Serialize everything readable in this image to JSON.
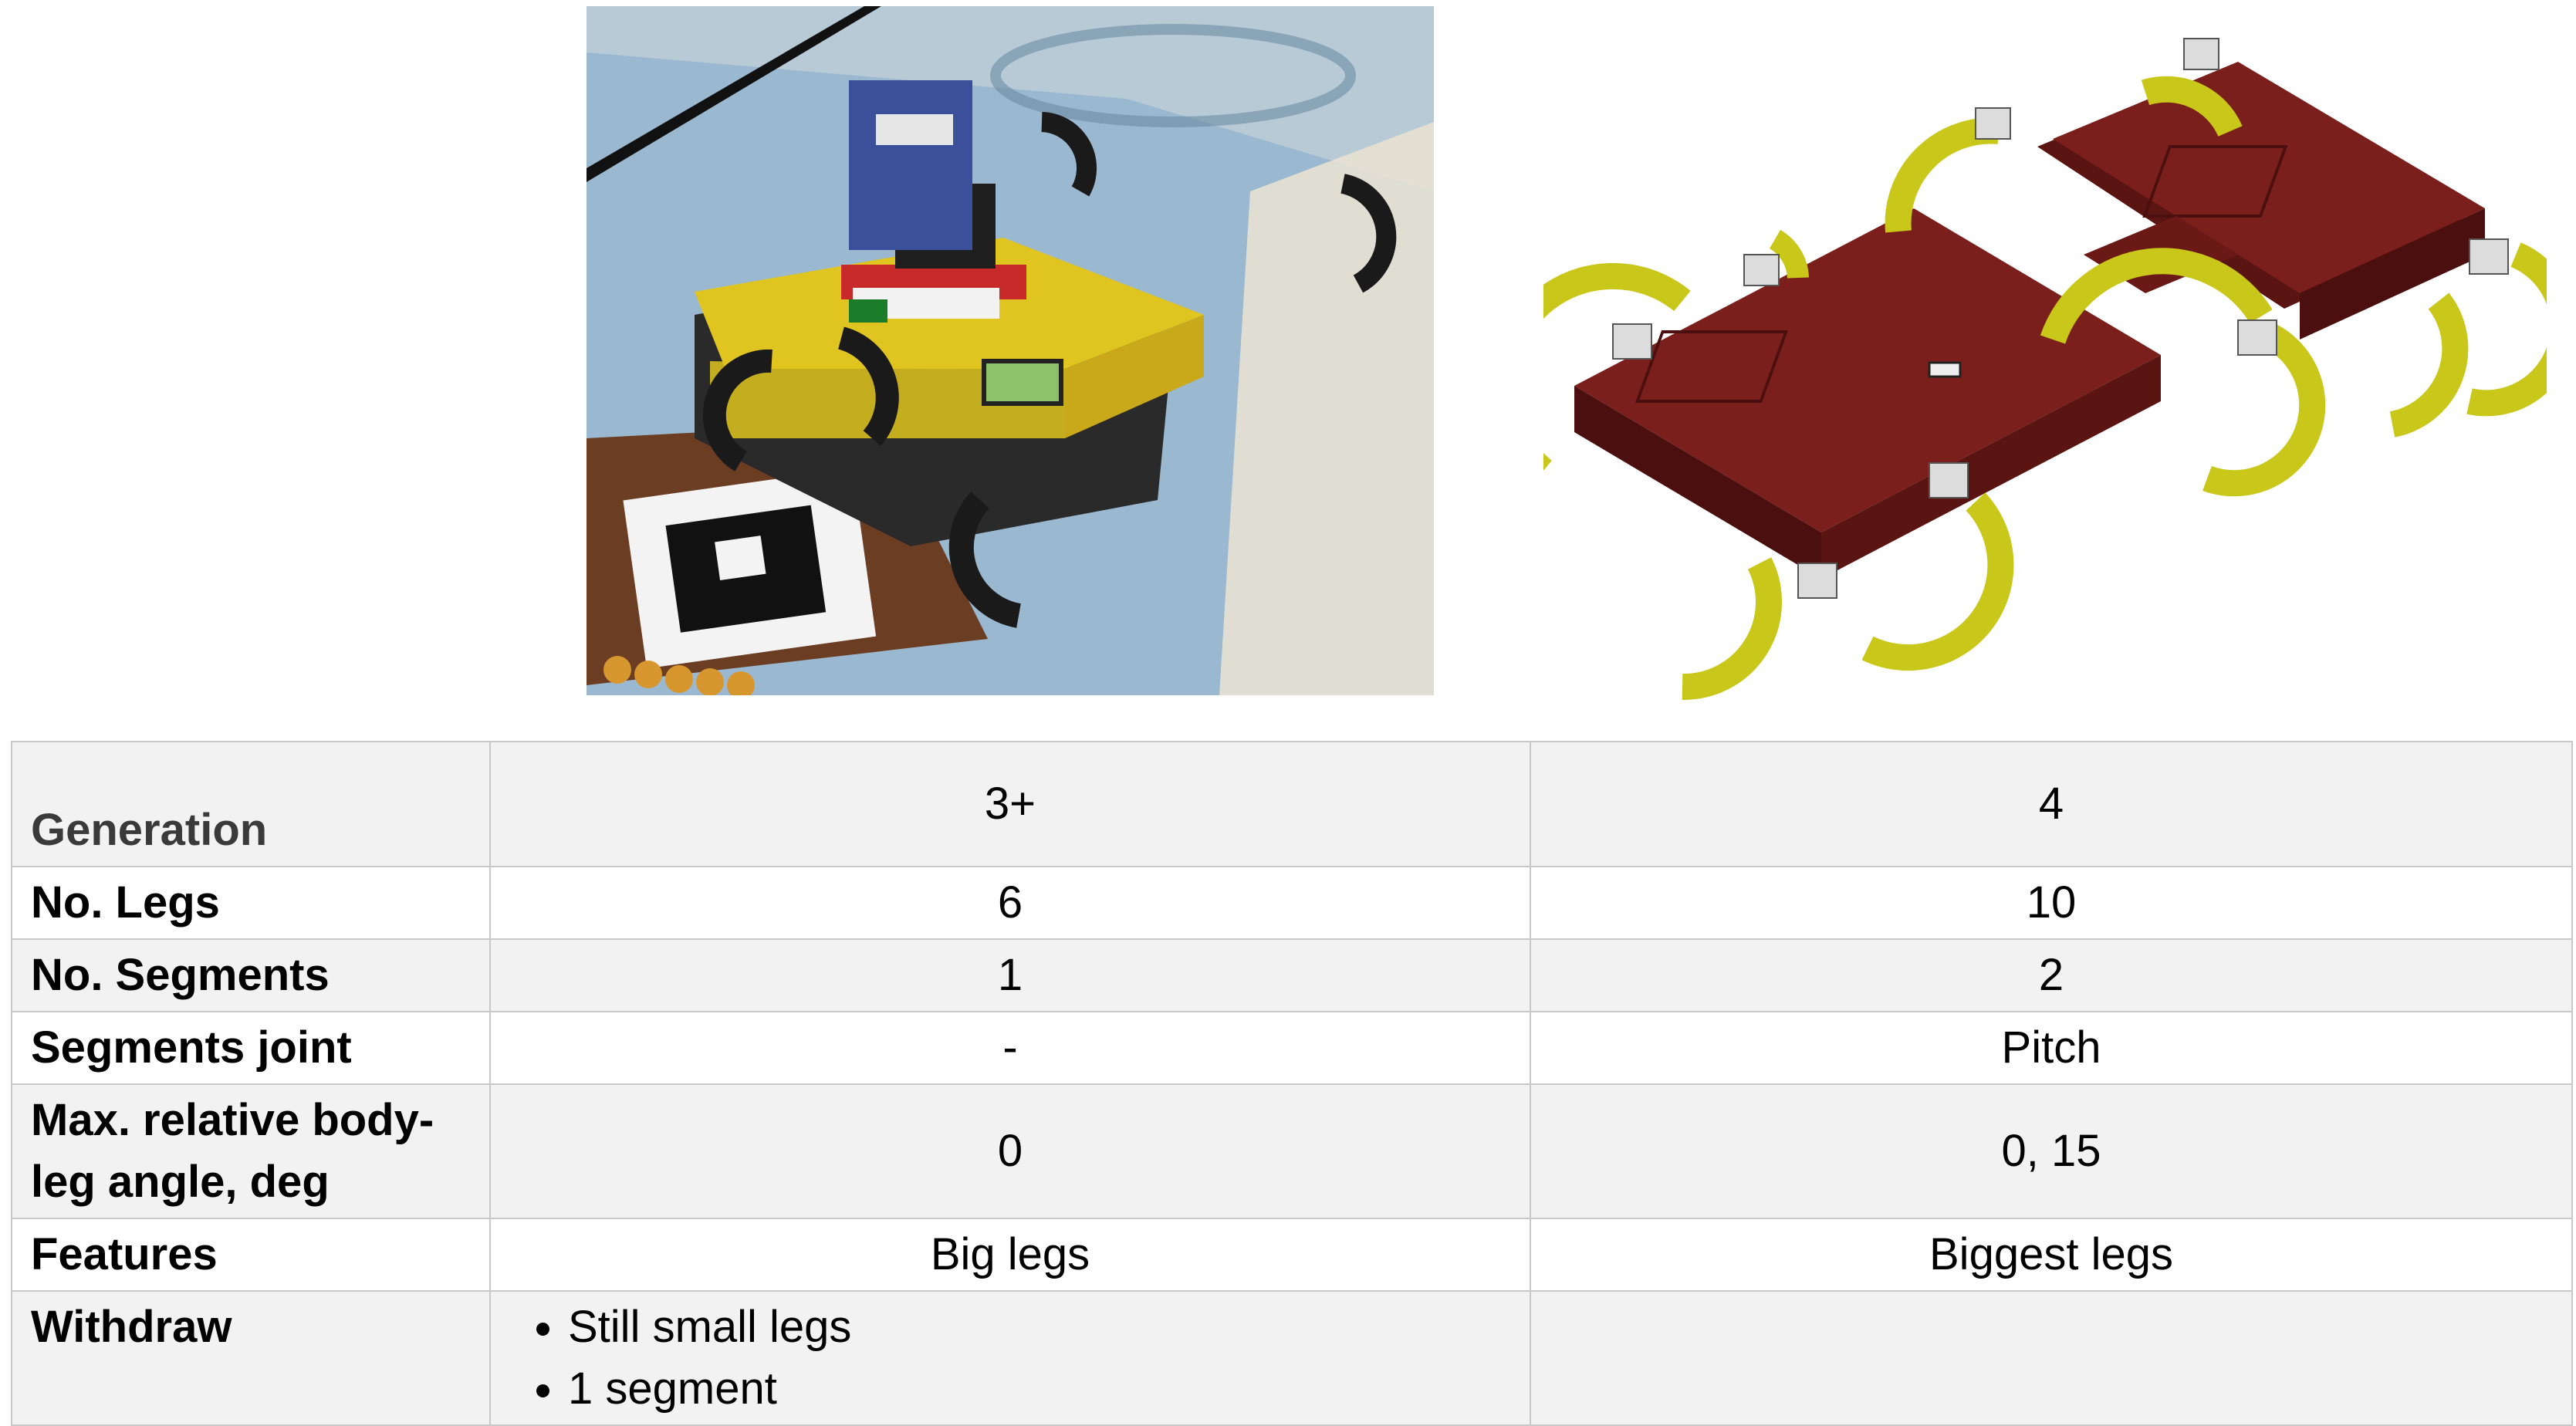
{
  "images": {
    "left": {
      "name": "generation-3plus-robot-photo"
    },
    "right": {
      "name": "generation-4-robot-cad-render"
    }
  },
  "colors": {
    "cad_body": "#6e1a17",
    "cad_legs": "#c9c81a",
    "photo_plate": "#e0c41f",
    "photo_floor": "#9ab8cf",
    "table_border": "#c8c8c8",
    "table_shade": "#f2f2f2"
  },
  "table": {
    "rows": [
      {
        "label": "Generation",
        "gen3": "3+",
        "gen4": "4"
      },
      {
        "label": "No. Legs",
        "gen3": "6",
        "gen4": "10"
      },
      {
        "label": "No. Segments",
        "gen3": "1",
        "gen4": "2"
      },
      {
        "label": "Segments joint",
        "gen3": "-",
        "gen4": "Pitch"
      },
      {
        "label": "Max. relative body-leg angle, deg",
        "gen3": "0",
        "gen4": "0, 15"
      },
      {
        "label": "Features",
        "gen3": "Big legs",
        "gen4": "Biggest legs"
      },
      {
        "label": "Withdraw",
        "gen3_items": [
          "Still small legs",
          "1 segment"
        ],
        "gen4": ""
      }
    ]
  }
}
